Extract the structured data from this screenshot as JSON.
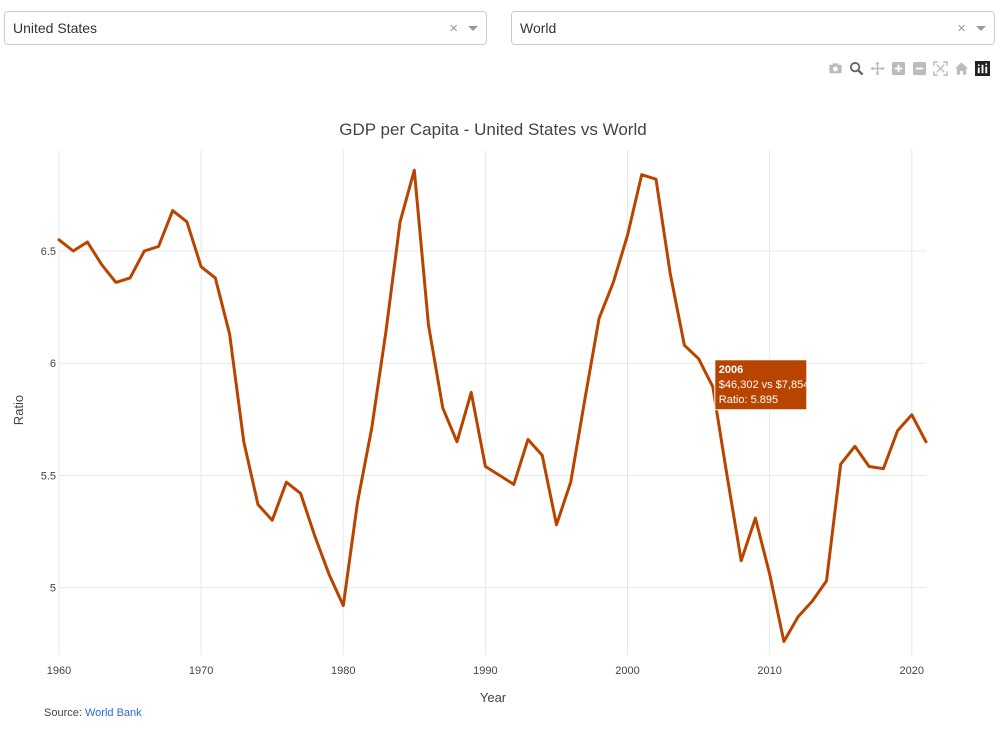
{
  "selectors": {
    "country": {
      "value": "United States",
      "clear": "×"
    },
    "compare": {
      "value": "World",
      "clear": "×"
    }
  },
  "modebar": [
    "camera-icon",
    "zoom-icon",
    "pan-icon",
    "zoom-in-icon",
    "zoom-out-icon",
    "autoscale-icon",
    "reset-home-icon",
    "plotly-logo-icon"
  ],
  "tooltip": {
    "year": "2006",
    "line1": "$46,302 vs $7,854",
    "line2": "Ratio: 5.895",
    "x": 2006,
    "y": 5.895
  },
  "source": {
    "label": "Source:",
    "link_text": "World Bank"
  },
  "colors": {
    "line": "#b84400",
    "tooltip_bg": "#b84400",
    "grid": "#e8e8e8"
  },
  "chart_data": {
    "type": "line",
    "title": "GDP per Capita - United States vs World",
    "xlabel": "Year",
    "ylabel": "Ratio",
    "xlim": [
      1960,
      2021
    ],
    "ylim": [
      4.7,
      6.95
    ],
    "xticks": [
      1960,
      1970,
      1980,
      1990,
      2000,
      2010,
      2020
    ],
    "yticks": [
      5,
      5.5,
      6,
      6.5
    ],
    "ytick_labels": [
      "5",
      "5.5",
      "6",
      "6.5"
    ],
    "grid": true,
    "x": [
      1960,
      1961,
      1962,
      1963,
      1964,
      1965,
      1966,
      1967,
      1968,
      1969,
      1970,
      1971,
      1972,
      1973,
      1974,
      1975,
      1976,
      1977,
      1978,
      1979,
      1980,
      1981,
      1982,
      1983,
      1984,
      1985,
      1986,
      1987,
      1988,
      1989,
      1990,
      1991,
      1992,
      1993,
      1994,
      1995,
      1996,
      1997,
      1998,
      1999,
      2000,
      2001,
      2002,
      2003,
      2004,
      2005,
      2006,
      2007,
      2008,
      2009,
      2010,
      2011,
      2012,
      2013,
      2014,
      2015,
      2016,
      2017,
      2018,
      2019,
      2020,
      2021
    ],
    "y": [
      6.55,
      6.5,
      6.54,
      6.44,
      6.36,
      6.38,
      6.5,
      6.52,
      6.68,
      6.63,
      6.43,
      6.38,
      6.13,
      5.65,
      5.37,
      5.3,
      5.47,
      5.42,
      5.23,
      5.06,
      4.92,
      5.38,
      5.71,
      6.14,
      6.63,
      6.86,
      6.17,
      5.8,
      5.65,
      5.87,
      5.54,
      5.5,
      5.46,
      5.66,
      5.59,
      5.28,
      5.47,
      5.84,
      6.2,
      6.36,
      6.57,
      6.84,
      6.82,
      6.4,
      6.08,
      6.02,
      5.895,
      5.5,
      5.12,
      5.31,
      5.06,
      4.76,
      4.87,
      4.94,
      5.03,
      5.55,
      5.63,
      5.54,
      5.53,
      5.7,
      5.77,
      5.65
    ]
  }
}
